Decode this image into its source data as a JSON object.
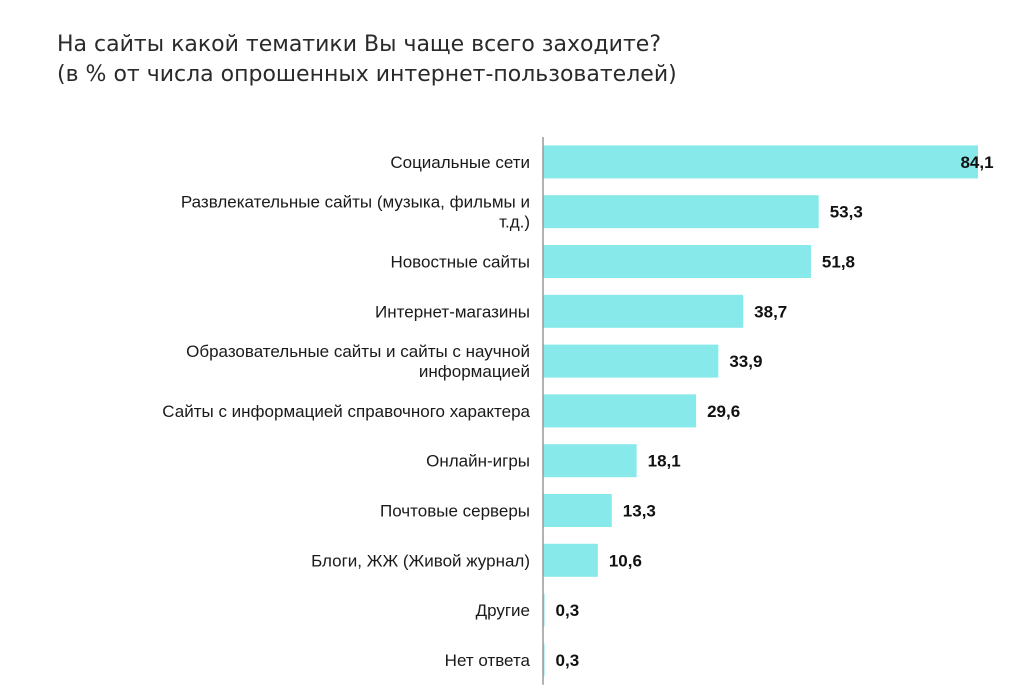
{
  "chart_data": {
    "type": "bar",
    "orientation": "horizontal",
    "title": "На сайты какой тематики Вы чаще всего заходите?",
    "subtitle": "(в % от числа опрошенных интернет-пользователей)",
    "categories": [
      "Социальные сети",
      "Развлекательные сайты (музыка, фильмы и т.д.)",
      "Новостные сайты",
      "Интернет-магазины",
      "Образовательные сайты и сайты с научной информацией",
      "Сайты с информацией справочного характера",
      "Онлайн-игры",
      "Почтовые серверы",
      "Блоги, ЖЖ (Живой журнал)",
      "Другие",
      "Нет ответа"
    ],
    "values": [
      84.1,
      53.3,
      51.8,
      38.7,
      33.9,
      29.6,
      18.1,
      13.3,
      10.6,
      0.3,
      0.3
    ],
    "value_labels": [
      "84,1",
      "53,3",
      "51,8",
      "38,7",
      "33,9",
      "29,6",
      "18,1",
      "13,3",
      "10,6",
      "0,3",
      "0,3"
    ],
    "xlim": [
      0,
      84.1
    ],
    "bar_color": "#87E9EA",
    "axis_color": "#999999",
    "grid": false,
    "legend": "none"
  }
}
